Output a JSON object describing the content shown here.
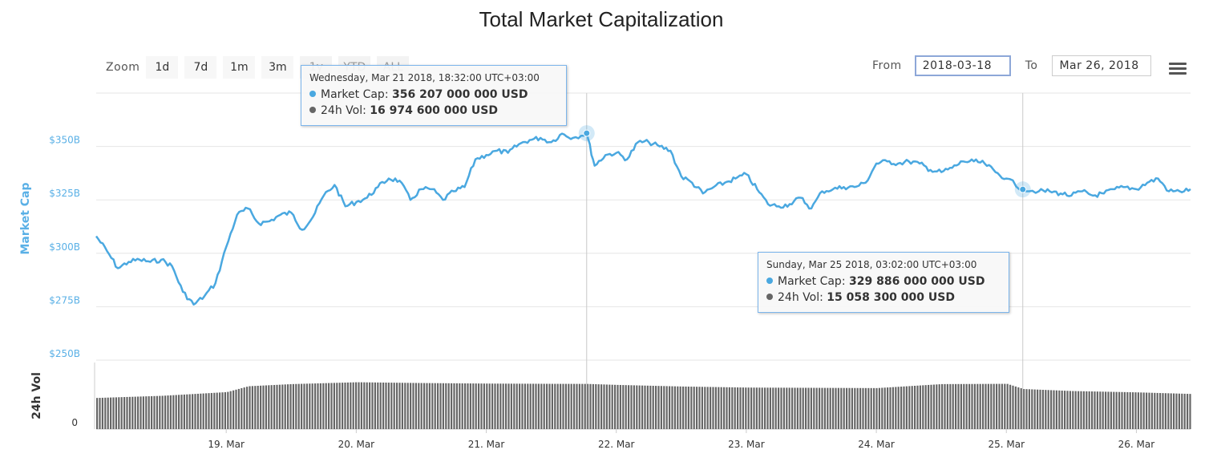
{
  "colors": {
    "market_cap_line": "#4aa8e0",
    "market_cap_axis": "#5ab0e6",
    "volume_bars": "#666666",
    "gridline": "#e6e6e6",
    "crosshair": "#c8c8c8"
  },
  "zoom": {
    "label": "Zoom",
    "buttons": [
      "1d",
      "7d",
      "1m",
      "3m",
      "1y",
      "YTD",
      "ALL"
    ]
  },
  "range": {
    "from_label": "From",
    "from_value": "2018-03-18",
    "to_label": "To",
    "to_value": "Mar 26, 2018"
  },
  "menu": {
    "icon": "hamburger-menu-icon"
  },
  "tooltips": [
    {
      "date": "Wednesday, Mar 21 2018, 18:32:00 UTC+03:00",
      "mc_label": "Market Cap: ",
      "mc_value": "356 207 000 000 USD",
      "vol_label": "24h Vol: ",
      "vol_value": "16 974 600 000 USD"
    },
    {
      "date": "Sunday, Mar 25 2018, 03:02:00 UTC+03:00",
      "mc_label": "Market Cap: ",
      "mc_value": "329 886 000 000 USD",
      "vol_label": "24h Vol: ",
      "vol_value": "15 058 300 000 USD"
    }
  ],
  "chart_data": {
    "type": "line",
    "title": "Total Market Capitalization",
    "xlim": [
      "2018-03-18T00:00",
      "2018-03-26T10:00"
    ],
    "x_ticks": [
      {
        "label": "19. Mar",
        "date": "2018-03-19"
      },
      {
        "label": "20. Mar",
        "date": "2018-03-20"
      },
      {
        "label": "21. Mar",
        "date": "2018-03-21"
      },
      {
        "label": "22. Mar",
        "date": "2018-03-22"
      },
      {
        "label": "23. Mar",
        "date": "2018-03-23"
      },
      {
        "label": "24. Mar",
        "date": "2018-03-24"
      },
      {
        "label": "25. Mar",
        "date": "2018-03-25"
      },
      {
        "label": "26. Mar",
        "date": "2018-03-26"
      }
    ],
    "market_cap": {
      "ylabel": "Market Cap",
      "unit": "USD billions",
      "ylim": [
        250,
        375
      ],
      "y_ticks": [
        250,
        275,
        300,
        325,
        350
      ],
      "y_tick_labels": [
        "$250B",
        "$275B",
        "$300B",
        "$325B",
        "$350B"
      ],
      "series": {
        "x": [
          "2018-03-18T00:00",
          "2018-03-18T02:00",
          "2018-03-18T04:00",
          "2018-03-18T06:00",
          "2018-03-18T08:00",
          "2018-03-18T10:00",
          "2018-03-18T12:00",
          "2018-03-18T14:00",
          "2018-03-18T16:00",
          "2018-03-18T18:00",
          "2018-03-18T20:00",
          "2018-03-18T22:00",
          "2018-03-19T00:00",
          "2018-03-19T02:00",
          "2018-03-19T04:00",
          "2018-03-19T06:00",
          "2018-03-19T08:00",
          "2018-03-19T10:00",
          "2018-03-19T12:00",
          "2018-03-19T14:00",
          "2018-03-19T16:00",
          "2018-03-19T18:00",
          "2018-03-19T20:00",
          "2018-03-19T22:00",
          "2018-03-20T00:00",
          "2018-03-20T02:00",
          "2018-03-20T04:00",
          "2018-03-20T06:00",
          "2018-03-20T08:00",
          "2018-03-20T10:00",
          "2018-03-20T12:00",
          "2018-03-20T14:00",
          "2018-03-20T16:00",
          "2018-03-20T18:00",
          "2018-03-20T20:00",
          "2018-03-20T22:00",
          "2018-03-21T00:00",
          "2018-03-21T02:00",
          "2018-03-21T04:00",
          "2018-03-21T06:00",
          "2018-03-21T08:00",
          "2018-03-21T10:00",
          "2018-03-21T12:00",
          "2018-03-21T14:00",
          "2018-03-21T16:00",
          "2018-03-21T18:32",
          "2018-03-21T20:00",
          "2018-03-21T22:00",
          "2018-03-22T00:00",
          "2018-03-22T02:00",
          "2018-03-22T04:00",
          "2018-03-22T06:00",
          "2018-03-22T08:00",
          "2018-03-22T10:00",
          "2018-03-22T12:00",
          "2018-03-22T14:00",
          "2018-03-22T16:00",
          "2018-03-22T18:00",
          "2018-03-22T20:00",
          "2018-03-22T22:00",
          "2018-03-23T00:00",
          "2018-03-23T02:00",
          "2018-03-23T04:00",
          "2018-03-23T06:00",
          "2018-03-23T08:00",
          "2018-03-23T10:00",
          "2018-03-23T12:00",
          "2018-03-23T14:00",
          "2018-03-23T16:00",
          "2018-03-23T18:00",
          "2018-03-23T20:00",
          "2018-03-23T22:00",
          "2018-03-24T00:00",
          "2018-03-24T02:00",
          "2018-03-24T04:00",
          "2018-03-24T06:00",
          "2018-03-24T08:00",
          "2018-03-24T10:00",
          "2018-03-24T12:00",
          "2018-03-24T14:00",
          "2018-03-24T16:00",
          "2018-03-24T18:00",
          "2018-03-24T20:00",
          "2018-03-24T22:00",
          "2018-03-25T00:00",
          "2018-03-25T03:02",
          "2018-03-25T06:00",
          "2018-03-25T08:00",
          "2018-03-25T10:00",
          "2018-03-25T12:00",
          "2018-03-25T14:00",
          "2018-03-25T16:00",
          "2018-03-25T18:00",
          "2018-03-25T20:00",
          "2018-03-25T22:00",
          "2018-03-26T00:00",
          "2018-03-26T02:00",
          "2018-03-26T04:00",
          "2018-03-26T06:00",
          "2018-03-26T08:00",
          "2018-03-26T10:00"
        ],
        "y": [
          308,
          301,
          293,
          296,
          297,
          296,
          297,
          294,
          282,
          276,
          280,
          286,
          303,
          318,
          321,
          314,
          315,
          318,
          319,
          311,
          317,
          327,
          332,
          322,
          324,
          326,
          331,
          335,
          334,
          325,
          330,
          330,
          325,
          329,
          331,
          344,
          346,
          348,
          347,
          351,
          353,
          354,
          352,
          356,
          354,
          356.2,
          341,
          346,
          347,
          344,
          352,
          352,
          350,
          348,
          336,
          333,
          328,
          331,
          333,
          335,
          337,
          330,
          323,
          322,
          323,
          326,
          321,
          329,
          330,
          331,
          331,
          333,
          342,
          343,
          342,
          343,
          342,
          339,
          338,
          340,
          343,
          343,
          342,
          338,
          335,
          330,
          329,
          329,
          328,
          327,
          329,
          327,
          328,
          330,
          331,
          330,
          333,
          335,
          329,
          329,
          330
        ]
      }
    },
    "volume": {
      "ylabel": "24h Vol",
      "unit": "USD billions",
      "ylim": [
        0,
        25
      ],
      "y_ticks": [
        0
      ],
      "y_tick_labels": [
        "0"
      ],
      "series": {
        "x": [
          "2018-03-18T00:00",
          "2018-03-18T12:00",
          "2018-03-19T00:00",
          "2018-03-19T04:00",
          "2018-03-19T12:00",
          "2018-03-20T00:00",
          "2018-03-20T12:00",
          "2018-03-21T00:00",
          "2018-03-21T12:00",
          "2018-03-21T18:32",
          "2018-03-22T00:00",
          "2018-03-22T12:00",
          "2018-03-23T00:00",
          "2018-03-23T12:00",
          "2018-03-24T00:00",
          "2018-03-24T12:00",
          "2018-03-25T00:00",
          "2018-03-25T03:02",
          "2018-03-25T12:00",
          "2018-03-26T00:00",
          "2018-03-26T10:00"
        ],
        "y": [
          11.7,
          12.5,
          13.9,
          16.1,
          16.9,
          17.6,
          17.3,
          17.1,
          17.0,
          16.97,
          16.6,
          16.0,
          15.6,
          15.5,
          15.4,
          16.9,
          17.0,
          15.06,
          14.3,
          13.8,
          13.2
        ]
      }
    },
    "crosshairs": [
      "2018-03-21T18:32",
      "2018-03-25T03:02"
    ],
    "legend": "none",
    "grid": true
  }
}
